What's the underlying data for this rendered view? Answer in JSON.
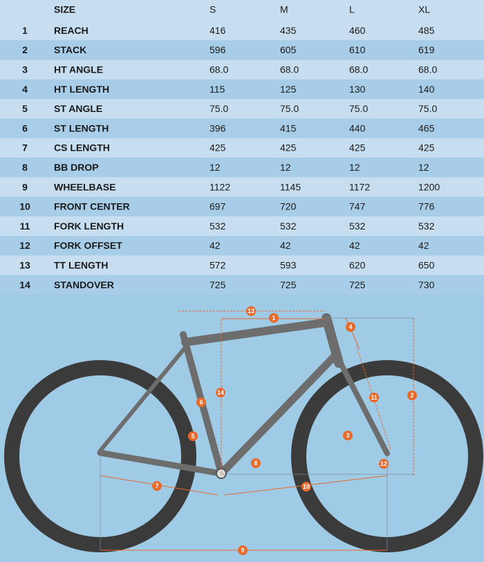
{
  "table": {
    "header": [
      "SIZE",
      "S",
      "M",
      "L",
      "XL"
    ],
    "rows": [
      [
        "1",
        "REACH",
        "416",
        "435",
        "460",
        "485"
      ],
      [
        "2",
        "STACK",
        "596",
        "605",
        "610",
        "619"
      ],
      [
        "3",
        "HT ANGLE",
        "68.0",
        "68.0",
        "68.0",
        "68.0"
      ],
      [
        "4",
        "HT LENGTH",
        "115",
        "125",
        "130",
        "140"
      ],
      [
        "5",
        "ST ANGLE",
        "75.0",
        "75.0",
        "75.0",
        "75.0"
      ],
      [
        "6",
        "ST LENGTH",
        "396",
        "415",
        "440",
        "465"
      ],
      [
        "7",
        "CS LENGTH",
        "425",
        "425",
        "425",
        "425"
      ],
      [
        "8",
        "BB DROP",
        "12",
        "12",
        "12",
        "12"
      ],
      [
        "9",
        "WHEELBASE",
        "1122",
        "1145",
        "1172",
        "1200"
      ],
      [
        "10",
        "FRONT CENTER",
        "697",
        "720",
        "747",
        "776"
      ],
      [
        "11",
        "FORK LENGTH",
        "532",
        "532",
        "532",
        "532"
      ],
      [
        "12",
        "FORK OFFSET",
        "42",
        "42",
        "42",
        "42"
      ],
      [
        "13",
        "TT LENGTH",
        "572",
        "593",
        "620",
        "650"
      ],
      [
        "14",
        "STANDOVER",
        "725",
        "725",
        "725",
        "730"
      ]
    ]
  },
  "diagram": {
    "markers": [
      "13",
      "1",
      "4",
      "2",
      "11",
      "14",
      "6",
      "5",
      "3",
      "8",
      "12",
      "7",
      "10",
      "9"
    ]
  }
}
